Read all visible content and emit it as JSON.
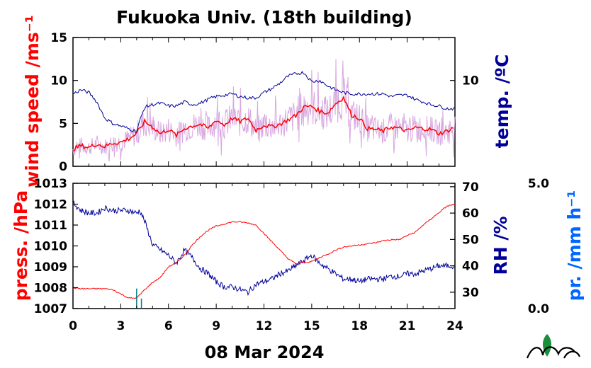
{
  "title": "Fukuoka Univ. (18th building)",
  "date_label": "08 Mar 2024",
  "colors": {
    "wind": "#ff0000",
    "wind_raw": "#d8a8e0",
    "temp": "#000099",
    "pressure": "#ff0000",
    "rh": "#000099",
    "precip": "#0066ff",
    "precip_bar": "#008080"
  },
  "chart_data": [
    {
      "type": "line",
      "panel": "top",
      "ylabel_left": "wind speed /ms⁻¹",
      "ylabel_right": "temp. /ºC",
      "ylim_left": [
        0,
        15
      ],
      "ylim_right": [
        3.6,
        13.2
      ],
      "yticks_left": [
        "0",
        "5",
        "10",
        "15"
      ],
      "yticks_right": [
        "10"
      ],
      "xlim": [
        0,
        24
      ],
      "series": [
        {
          "axis": "left",
          "style": "raw-spiky",
          "x": [
            0,
            0.5,
            1,
            1.5,
            2,
            2.5,
            3,
            3.5,
            4,
            4.5,
            5,
            5.5,
            6,
            6.5,
            7,
            7.5,
            8,
            8.5,
            9,
            9.5,
            10,
            10.5,
            11,
            11.5,
            12,
            12.5,
            13,
            13.5,
            14,
            14.5,
            15,
            15.5,
            16,
            16.5,
            17,
            17.5,
            18,
            18.5,
            19,
            19.5,
            20,
            20.5,
            21,
            21.5,
            22,
            22.5,
            23,
            23.5,
            24
          ],
          "values": [
            2,
            2.4,
            2.2,
            2.6,
            2.3,
            2.7,
            2.8,
            3.2,
            3.8,
            5.2,
            4.6,
            3.8,
            4.3,
            3.6,
            4.4,
            4.7,
            4.9,
            4.4,
            5.4,
            4.8,
            5.6,
            5.2,
            5.6,
            4.2,
            4.8,
            4.6,
            4.9,
            5.4,
            5.9,
            6.9,
            7.0,
            6.4,
            6.2,
            7.3,
            8.0,
            6.0,
            5.6,
            4.4,
            4.3,
            4.1,
            4.6,
            4.4,
            4.1,
            4.5,
            4.4,
            4.3,
            3.8,
            4.1,
            4.6
          ]
        },
        {
          "axis": "left",
          "x": [
            0,
            0.5,
            1,
            1.5,
            2,
            2.5,
            3,
            3.5,
            4,
            4.5,
            5,
            5.5,
            6,
            6.5,
            7,
            7.5,
            8,
            8.5,
            9,
            9.5,
            10,
            10.5,
            11,
            11.5,
            12,
            12.5,
            13,
            13.5,
            14,
            14.5,
            15,
            15.5,
            16,
            16.5,
            17,
            17.5,
            18,
            18.5,
            19,
            19.5,
            20,
            20.5,
            21,
            21.5,
            22,
            22.5,
            23,
            23.5,
            24
          ],
          "values": [
            2,
            2.4,
            2.2,
            2.6,
            2.3,
            2.7,
            2.8,
            3.2,
            3.8,
            5.2,
            4.6,
            3.8,
            4.3,
            3.6,
            4.4,
            4.7,
            4.9,
            4.4,
            5.4,
            4.8,
            5.6,
            5.2,
            5.6,
            4.2,
            4.8,
            4.6,
            4.9,
            5.4,
            5.9,
            6.9,
            7.0,
            6.4,
            6.2,
            7.3,
            8.0,
            6.0,
            5.6,
            4.4,
            4.3,
            4.1,
            4.6,
            4.4,
            4.1,
            4.5,
            4.4,
            4.3,
            3.8,
            4.1,
            4.6
          ]
        },
        {
          "axis": "right",
          "x": [
            0,
            0.5,
            1,
            1.5,
            2,
            2.5,
            3,
            3.5,
            4,
            4.2,
            4.5,
            5,
            5.5,
            6,
            6.5,
            7,
            7.5,
            8,
            8.5,
            9,
            9.5,
            10,
            10.5,
            11,
            11.5,
            12,
            12.5,
            13,
            13.5,
            14,
            14.5,
            15,
            15.5,
            16,
            16.5,
            17,
            17.5,
            18,
            18.5,
            19,
            19.5,
            20,
            20.5,
            21,
            21.5,
            22,
            22.5,
            23,
            23.5,
            24
          ],
          "values": [
            9.0,
            9.3,
            9.1,
            8.4,
            7.2,
            6.8,
            6.6,
            6.4,
            6.2,
            7.0,
            8.0,
            8.2,
            8.3,
            8.1,
            8.1,
            8.4,
            8.2,
            8.3,
            8.6,
            8.8,
            8.9,
            9.0,
            8.8,
            8.7,
            8.7,
            9.1,
            9.4,
            9.8,
            10.3,
            10.5,
            10.6,
            9.9,
            10.0,
            9.6,
            9.3,
            9.1,
            9.0,
            9.0,
            9.0,
            9.0,
            9.0,
            8.8,
            8.9,
            8.9,
            8.6,
            8.4,
            8.2,
            8.1,
            7.9,
            7.9
          ]
        }
      ]
    },
    {
      "type": "line",
      "panel": "bottom",
      "ylabel_left": "press. /hPa",
      "ylabel_right": "RH /%",
      "ylabel_far_right": "pr. /mm h⁻¹",
      "ylim_left": [
        1007,
        1013
      ],
      "ylim_right": [
        23.8,
        71.3
      ],
      "ylim_far_right": [
        0.0,
        5.0
      ],
      "yticks_left": [
        "1007",
        "1008",
        "1009",
        "1010",
        "1011",
        "1012",
        "1013"
      ],
      "yticks_right": [
        "30",
        "40",
        "50",
        "60",
        "70"
      ],
      "yticks_far_right": [
        "0.0",
        "5.0"
      ],
      "xlim": [
        0,
        24
      ],
      "xticks": [
        "0",
        "3",
        "6",
        "9",
        "12",
        "15",
        "18",
        "21",
        "24"
      ],
      "series": [
        {
          "axis": "left",
          "x": [
            0,
            0.5,
            1,
            1.5,
            2,
            2.5,
            3,
            3.5,
            4,
            4.5,
            5,
            5.5,
            6,
            6.5,
            7,
            7.5,
            8,
            8.5,
            9,
            9.5,
            10,
            10.5,
            11,
            11.5,
            12,
            12.5,
            13,
            13.5,
            14,
            14.5,
            15,
            15.5,
            16,
            16.5,
            17,
            17.5,
            18,
            18.5,
            19,
            19.5,
            20,
            20.5,
            21,
            21.5,
            22,
            22.5,
            23,
            23.5,
            24
          ],
          "values": [
            1008,
            1007.95,
            1007.95,
            1007.95,
            1007.95,
            1007.9,
            1007.7,
            1007.5,
            1007.5,
            1007.9,
            1008.25,
            1008.5,
            1009,
            1009.2,
            1009.55,
            1010.05,
            1010.45,
            1010.75,
            1010.95,
            1011.05,
            1011.15,
            1011.15,
            1011.1,
            1011.0,
            1010.6,
            1010.2,
            1009.8,
            1009.4,
            1009.15,
            1009.2,
            1009.25,
            1009.45,
            1009.6,
            1009.8,
            1009.95,
            1010.0,
            1010.05,
            1010.1,
            1010.15,
            1010.25,
            1010.3,
            1010.3,
            1010.5,
            1010.65,
            1011.0,
            1011.3,
            1011.6,
            1011.9,
            1012.0
          ]
        },
        {
          "axis": "right",
          "x": [
            0,
            0.5,
            1,
            1.5,
            2,
            2.5,
            3,
            3.5,
            4,
            4.2,
            4.5,
            5,
            5.5,
            6,
            6.5,
            7,
            7.5,
            8,
            8.5,
            9,
            9.5,
            10,
            10.5,
            11,
            11.5,
            12,
            12.5,
            13,
            13.5,
            14,
            14.5,
            15,
            15.5,
            16,
            16.5,
            17,
            17.5,
            18,
            18.5,
            19,
            19.5,
            20,
            20.5,
            21,
            21.5,
            22,
            22.5,
            23,
            23.5,
            24
          ],
          "values": [
            64,
            61,
            60,
            60,
            62,
            61,
            61,
            61,
            60,
            61,
            57,
            48,
            46,
            44,
            41,
            46,
            43,
            39,
            37,
            34,
            32,
            32,
            31,
            30,
            33,
            34,
            35,
            37,
            38,
            40,
            42,
            44,
            41,
            39,
            37,
            35,
            35,
            34,
            35,
            35,
            35,
            36,
            36,
            37,
            37,
            38,
            39,
            40,
            40,
            40
          ]
        },
        {
          "axis": "far-right",
          "style": "bars",
          "x": [
            4.0,
            4.3
          ],
          "values": [
            0.8,
            0.4
          ]
        }
      ]
    }
  ]
}
